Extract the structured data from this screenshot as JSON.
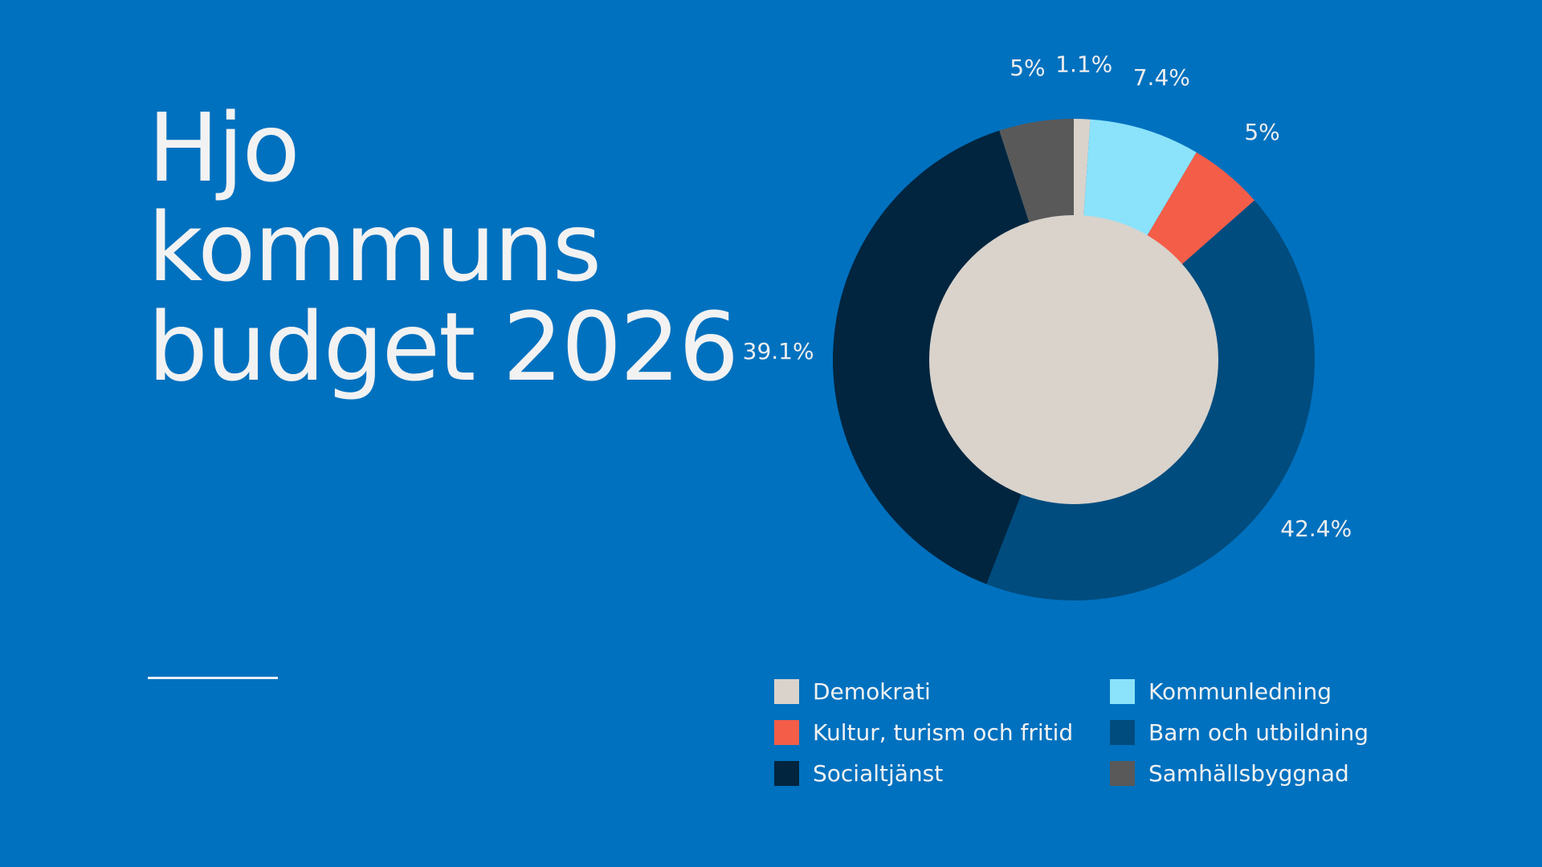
{
  "title": {
    "line1": "Hjo",
    "line2": "kommuns",
    "line3": "budget 2026"
  },
  "chart_data": {
    "type": "pie",
    "title": "Hjo kommuns budget 2026",
    "inner_disc_category": "Demokrati",
    "slices": [
      {
        "label": "Demokrati",
        "value": 1.1,
        "display": "1.1%",
        "color": "#D9D3CC"
      },
      {
        "label": "Kommunledning",
        "value": 7.4,
        "display": "7.4%",
        "color": "#8AE3FA"
      },
      {
        "label": "Kultur, turism och fritid",
        "value": 5.0,
        "display": "5%",
        "color": "#F45D48"
      },
      {
        "label": "Barn och utbildning",
        "value": 42.4,
        "display": "42.4%",
        "color": "#004C7E"
      },
      {
        "label": "Socialtjänst",
        "value": 39.1,
        "display": "39.1%",
        "color": "#01253F"
      },
      {
        "label": "Samhällsbyggnad",
        "value": 5.0,
        "display": "5%",
        "color": "#595959"
      }
    ],
    "legend": {
      "placement": "bottom",
      "columns": 2,
      "order": [
        "Demokrati",
        "Kommunledning",
        "Kultur, turism och fritid",
        "Barn och utbildning",
        "Socialtjänst",
        "Samhällsbyggnad"
      ]
    }
  }
}
